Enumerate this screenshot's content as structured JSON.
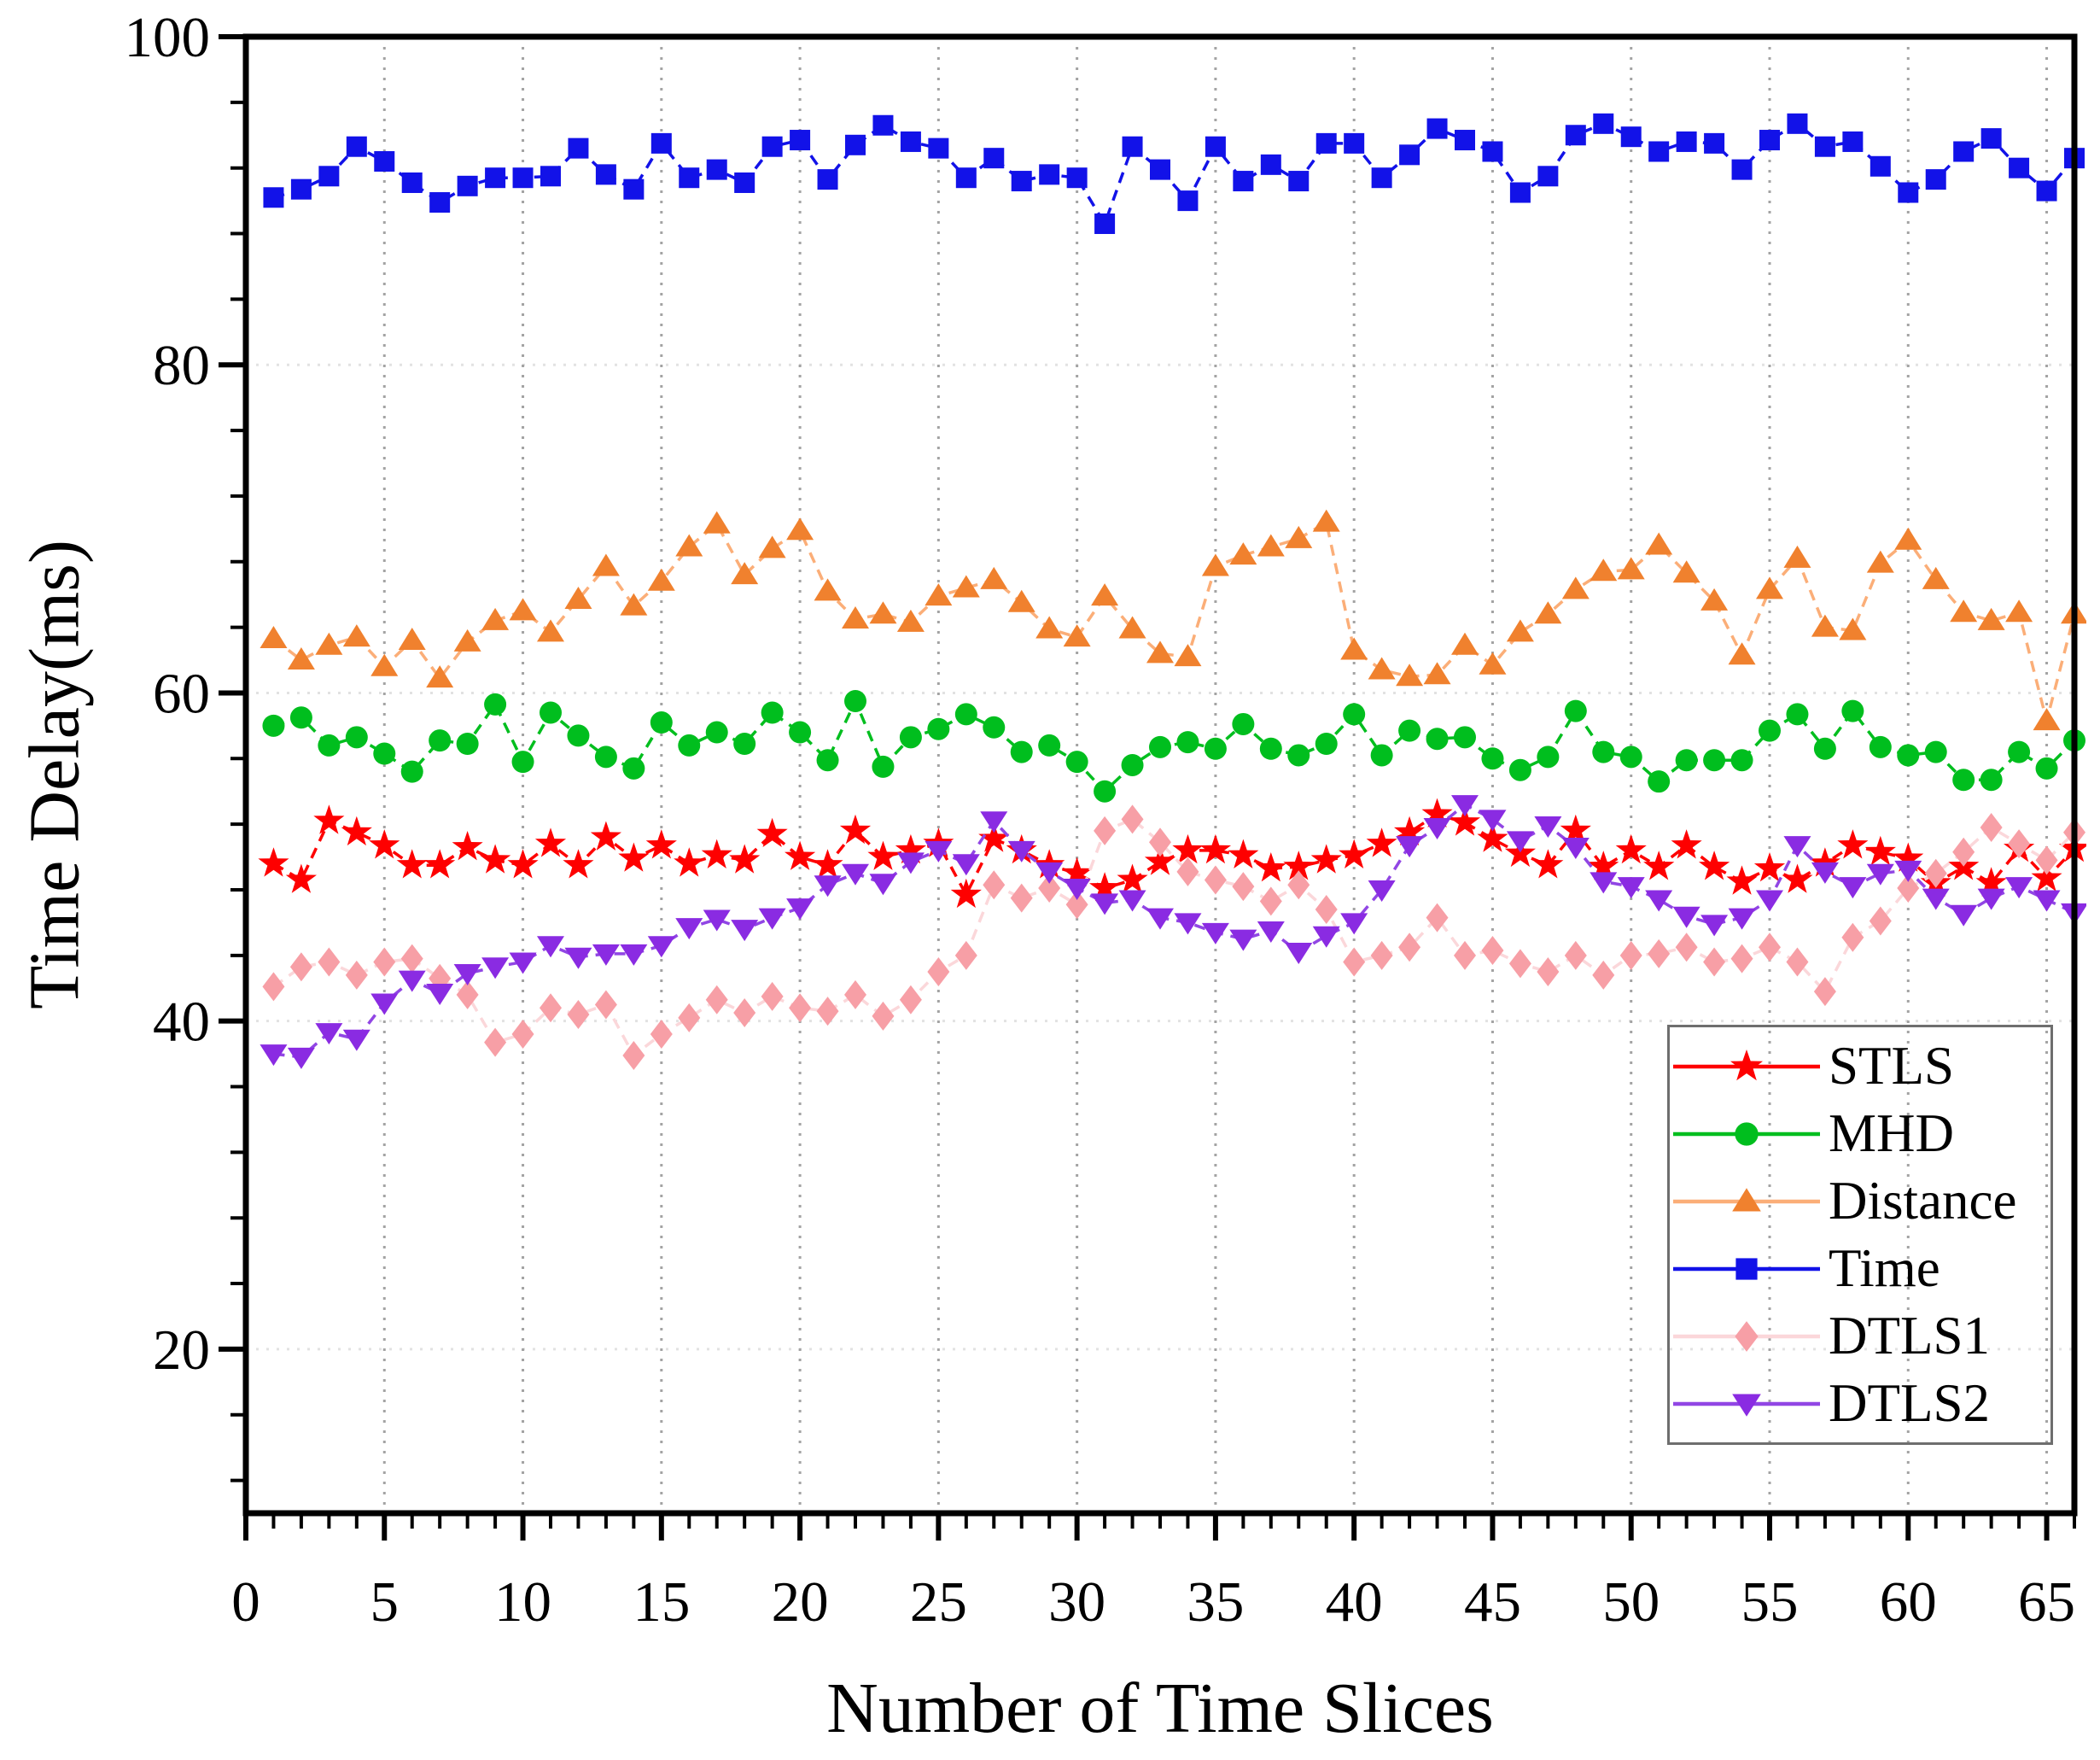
{
  "figure": {
    "background": "#ffffff"
  },
  "chart_data": {
    "type": "line",
    "title": "",
    "xlabel": "Number of Time Slices",
    "ylabel": "Time Delay(ms)",
    "xlim": [
      0,
      66
    ],
    "ylim": [
      10,
      100
    ],
    "x_major_ticks": [
      0,
      5,
      10,
      15,
      20,
      25,
      30,
      35,
      40,
      45,
      50,
      55,
      60,
      65
    ],
    "x_minor_step": 1,
    "y_major_ticks": [
      20,
      40,
      60,
      80,
      100
    ],
    "y_minor_step": 4,
    "grid": {
      "vertical": true,
      "horizontal": true,
      "v_color": "#a3a3a3",
      "h_color": "#e2e2e2"
    },
    "legend_position": "bottom-right",
    "x": [
      1,
      2,
      3,
      4,
      5,
      6,
      7,
      8,
      9,
      10,
      11,
      12,
      13,
      14,
      15,
      16,
      17,
      18,
      19,
      20,
      21,
      22,
      23,
      24,
      25,
      26,
      27,
      28,
      29,
      30,
      31,
      32,
      33,
      34,
      35,
      36,
      37,
      38,
      39,
      40,
      41,
      42,
      43,
      44,
      45,
      46,
      47,
      48,
      49,
      50,
      51,
      52,
      53,
      54,
      55,
      56,
      57,
      58,
      59,
      60,
      61,
      62,
      63,
      64,
      65,
      66
    ],
    "series": [
      {
        "name": "STLS",
        "marker": "star",
        "color": "#fe0000",
        "line_color": "#fe0000",
        "line_style": "dashed",
        "values": [
          49.6,
          48.6,
          52.2,
          51.5,
          50.7,
          49.5,
          49.5,
          50.6,
          49.8,
          49.5,
          50.8,
          49.5,
          51.2,
          49.9,
          50.7,
          49.6,
          50.1,
          49.8,
          51.4,
          50.0,
          49.5,
          51.6,
          50.0,
          50.4,
          50.8,
          47.7,
          51.1,
          50.4,
          49.5,
          49.0,
          48.1,
          48.6,
          49.7,
          50.4,
          50.4,
          50.1,
          49.3,
          49.4,
          49.8,
          50.1,
          50.8,
          51.5,
          52.6,
          52.1,
          51.1,
          50.2,
          49.5,
          51.6,
          49.4,
          50.4,
          49.4,
          50.7,
          49.4,
          48.5,
          49.3,
          48.6,
          49.6,
          50.7,
          50.3,
          49.9,
          48.4,
          49.4,
          48.4,
          50.5,
          48.7,
          50.5
        ]
      },
      {
        "name": "MHD",
        "marker": "circle",
        "color": "#00be1e",
        "line_color": "#00be1e",
        "line_style": "dashed",
        "values": [
          58.0,
          58.5,
          56.8,
          57.3,
          56.3,
          55.2,
          57.1,
          56.9,
          59.3,
          55.8,
          58.8,
          57.4,
          56.1,
          55.4,
          58.2,
          56.8,
          57.6,
          56.9,
          58.8,
          57.6,
          55.9,
          59.5,
          55.5,
          57.3,
          57.8,
          58.7,
          57.9,
          56.4,
          56.8,
          55.8,
          54.0,
          55.6,
          56.7,
          57.0,
          56.6,
          58.1,
          56.6,
          56.2,
          56.9,
          58.7,
          56.2,
          57.7,
          57.2,
          57.3,
          56.0,
          55.3,
          56.1,
          58.9,
          56.4,
          56.1,
          54.6,
          55.9,
          55.9,
          55.9,
          57.7,
          58.7,
          56.6,
          58.9,
          56.7,
          56.2,
          56.4,
          54.7,
          54.7,
          56.4,
          55.4,
          57.1
        ]
      },
      {
        "name": "Distance",
        "marker": "triangle-up",
        "color": "#f0812e",
        "line_color": "#fbae78",
        "line_style": "dashed",
        "values": [
          63.3,
          62.0,
          62.9,
          63.4,
          61.6,
          63.2,
          60.9,
          63.1,
          64.4,
          65.0,
          63.7,
          65.7,
          67.7,
          65.3,
          66.8,
          68.9,
          70.3,
          67.2,
          68.8,
          69.9,
          66.2,
          64.5,
          64.8,
          64.3,
          65.9,
          66.4,
          66.9,
          65.5,
          63.9,
          63.4,
          65.9,
          63.9,
          62.4,
          62.2,
          67.7,
          68.4,
          68.9,
          69.4,
          70.4,
          62.6,
          61.4,
          61.0,
          61.1,
          62.9,
          61.7,
          63.7,
          64.8,
          66.3,
          67.4,
          67.5,
          69.0,
          67.3,
          65.6,
          62.3,
          66.3,
          68.2,
          64.0,
          63.8,
          67.9,
          69.3,
          66.9,
          64.9,
          64.4,
          64.9,
          58.3,
          64.8
        ]
      },
      {
        "name": "Time",
        "marker": "square",
        "color": "#1212e8",
        "line_color": "#1212e8",
        "line_style": "dashed",
        "values": [
          90.2,
          90.7,
          91.5,
          93.3,
          92.4,
          91.1,
          89.9,
          90.9,
          91.4,
          91.4,
          91.5,
          93.2,
          91.6,
          90.7,
          93.5,
          91.4,
          91.9,
          91.1,
          93.3,
          93.7,
          91.3,
          93.4,
          94.6,
          93.6,
          93.2,
          91.4,
          92.6,
          91.2,
          91.6,
          91.4,
          88.6,
          93.3,
          91.9,
          90.0,
          93.3,
          91.2,
          92.2,
          91.2,
          93.5,
          93.5,
          91.4,
          92.8,
          94.4,
          93.7,
          93.0,
          90.5,
          91.5,
          94.0,
          94.7,
          93.9,
          93.0,
          93.6,
          93.5,
          91.9,
          93.7,
          94.7,
          93.3,
          93.6,
          92.1,
          90.5,
          91.3,
          93.0,
          93.8,
          92.0,
          90.6,
          92.6
        ]
      },
      {
        "name": "DTLS1",
        "marker": "diamond",
        "color": "#f79fa6",
        "line_color": "#fbd7da",
        "line_style": "dashed",
        "values": [
          42.1,
          43.3,
          43.6,
          42.8,
          43.6,
          43.8,
          42.6,
          41.6,
          38.7,
          39.2,
          40.8,
          40.4,
          41.0,
          37.9,
          39.2,
          40.2,
          41.3,
          40.5,
          41.5,
          40.8,
          40.6,
          41.6,
          40.3,
          41.3,
          43.0,
          44.0,
          48.3,
          47.5,
          48.1,
          47.1,
          51.6,
          52.3,
          50.9,
          49.1,
          48.6,
          48.2,
          47.3,
          48.3,
          46.8,
          43.6,
          44.0,
          44.5,
          46.3,
          44.0,
          44.3,
          43.5,
          43.0,
          44.0,
          42.8,
          44.0,
          44.1,
          44.5,
          43.6,
          43.8,
          44.5,
          43.6,
          41.8,
          45.1,
          46.1,
          48.1,
          49.0,
          50.3,
          51.8,
          50.8,
          49.8,
          51.5
        ]
      },
      {
        "name": "DTLS2",
        "marker": "triangle-down",
        "color": "#8a2be2",
        "line_color": "#9146e4",
        "line_style": "dashed",
        "values": [
          38.0,
          37.8,
          39.3,
          38.9,
          41.1,
          42.5,
          41.7,
          42.9,
          43.3,
          43.6,
          44.6,
          43.9,
          44.1,
          44.1,
          44.6,
          45.7,
          46.2,
          45.6,
          46.3,
          46.9,
          48.3,
          49.0,
          48.4,
          49.7,
          50.4,
          49.6,
          52.2,
          50.4,
          49.1,
          48.1,
          47.2,
          47.4,
          46.3,
          46.0,
          45.4,
          45.0,
          45.5,
          44.2,
          45.2,
          46.0,
          48.0,
          50.7,
          51.8,
          53.2,
          52.3,
          51.0,
          51.9,
          50.6,
          48.5,
          48.2,
          47.4,
          46.4,
          45.9,
          46.3,
          47.4,
          50.7,
          49.1,
          48.2,
          49.0,
          49.2,
          47.5,
          46.5,
          47.5,
          48.2,
          47.4,
          46.6
        ]
      }
    ]
  },
  "legend": {
    "items": [
      {
        "label": "STLS"
      },
      {
        "label": "MHD"
      },
      {
        "label": "Distance"
      },
      {
        "label": "Time"
      },
      {
        "label": "DTLS1"
      },
      {
        "label": "DTLS2"
      }
    ]
  }
}
